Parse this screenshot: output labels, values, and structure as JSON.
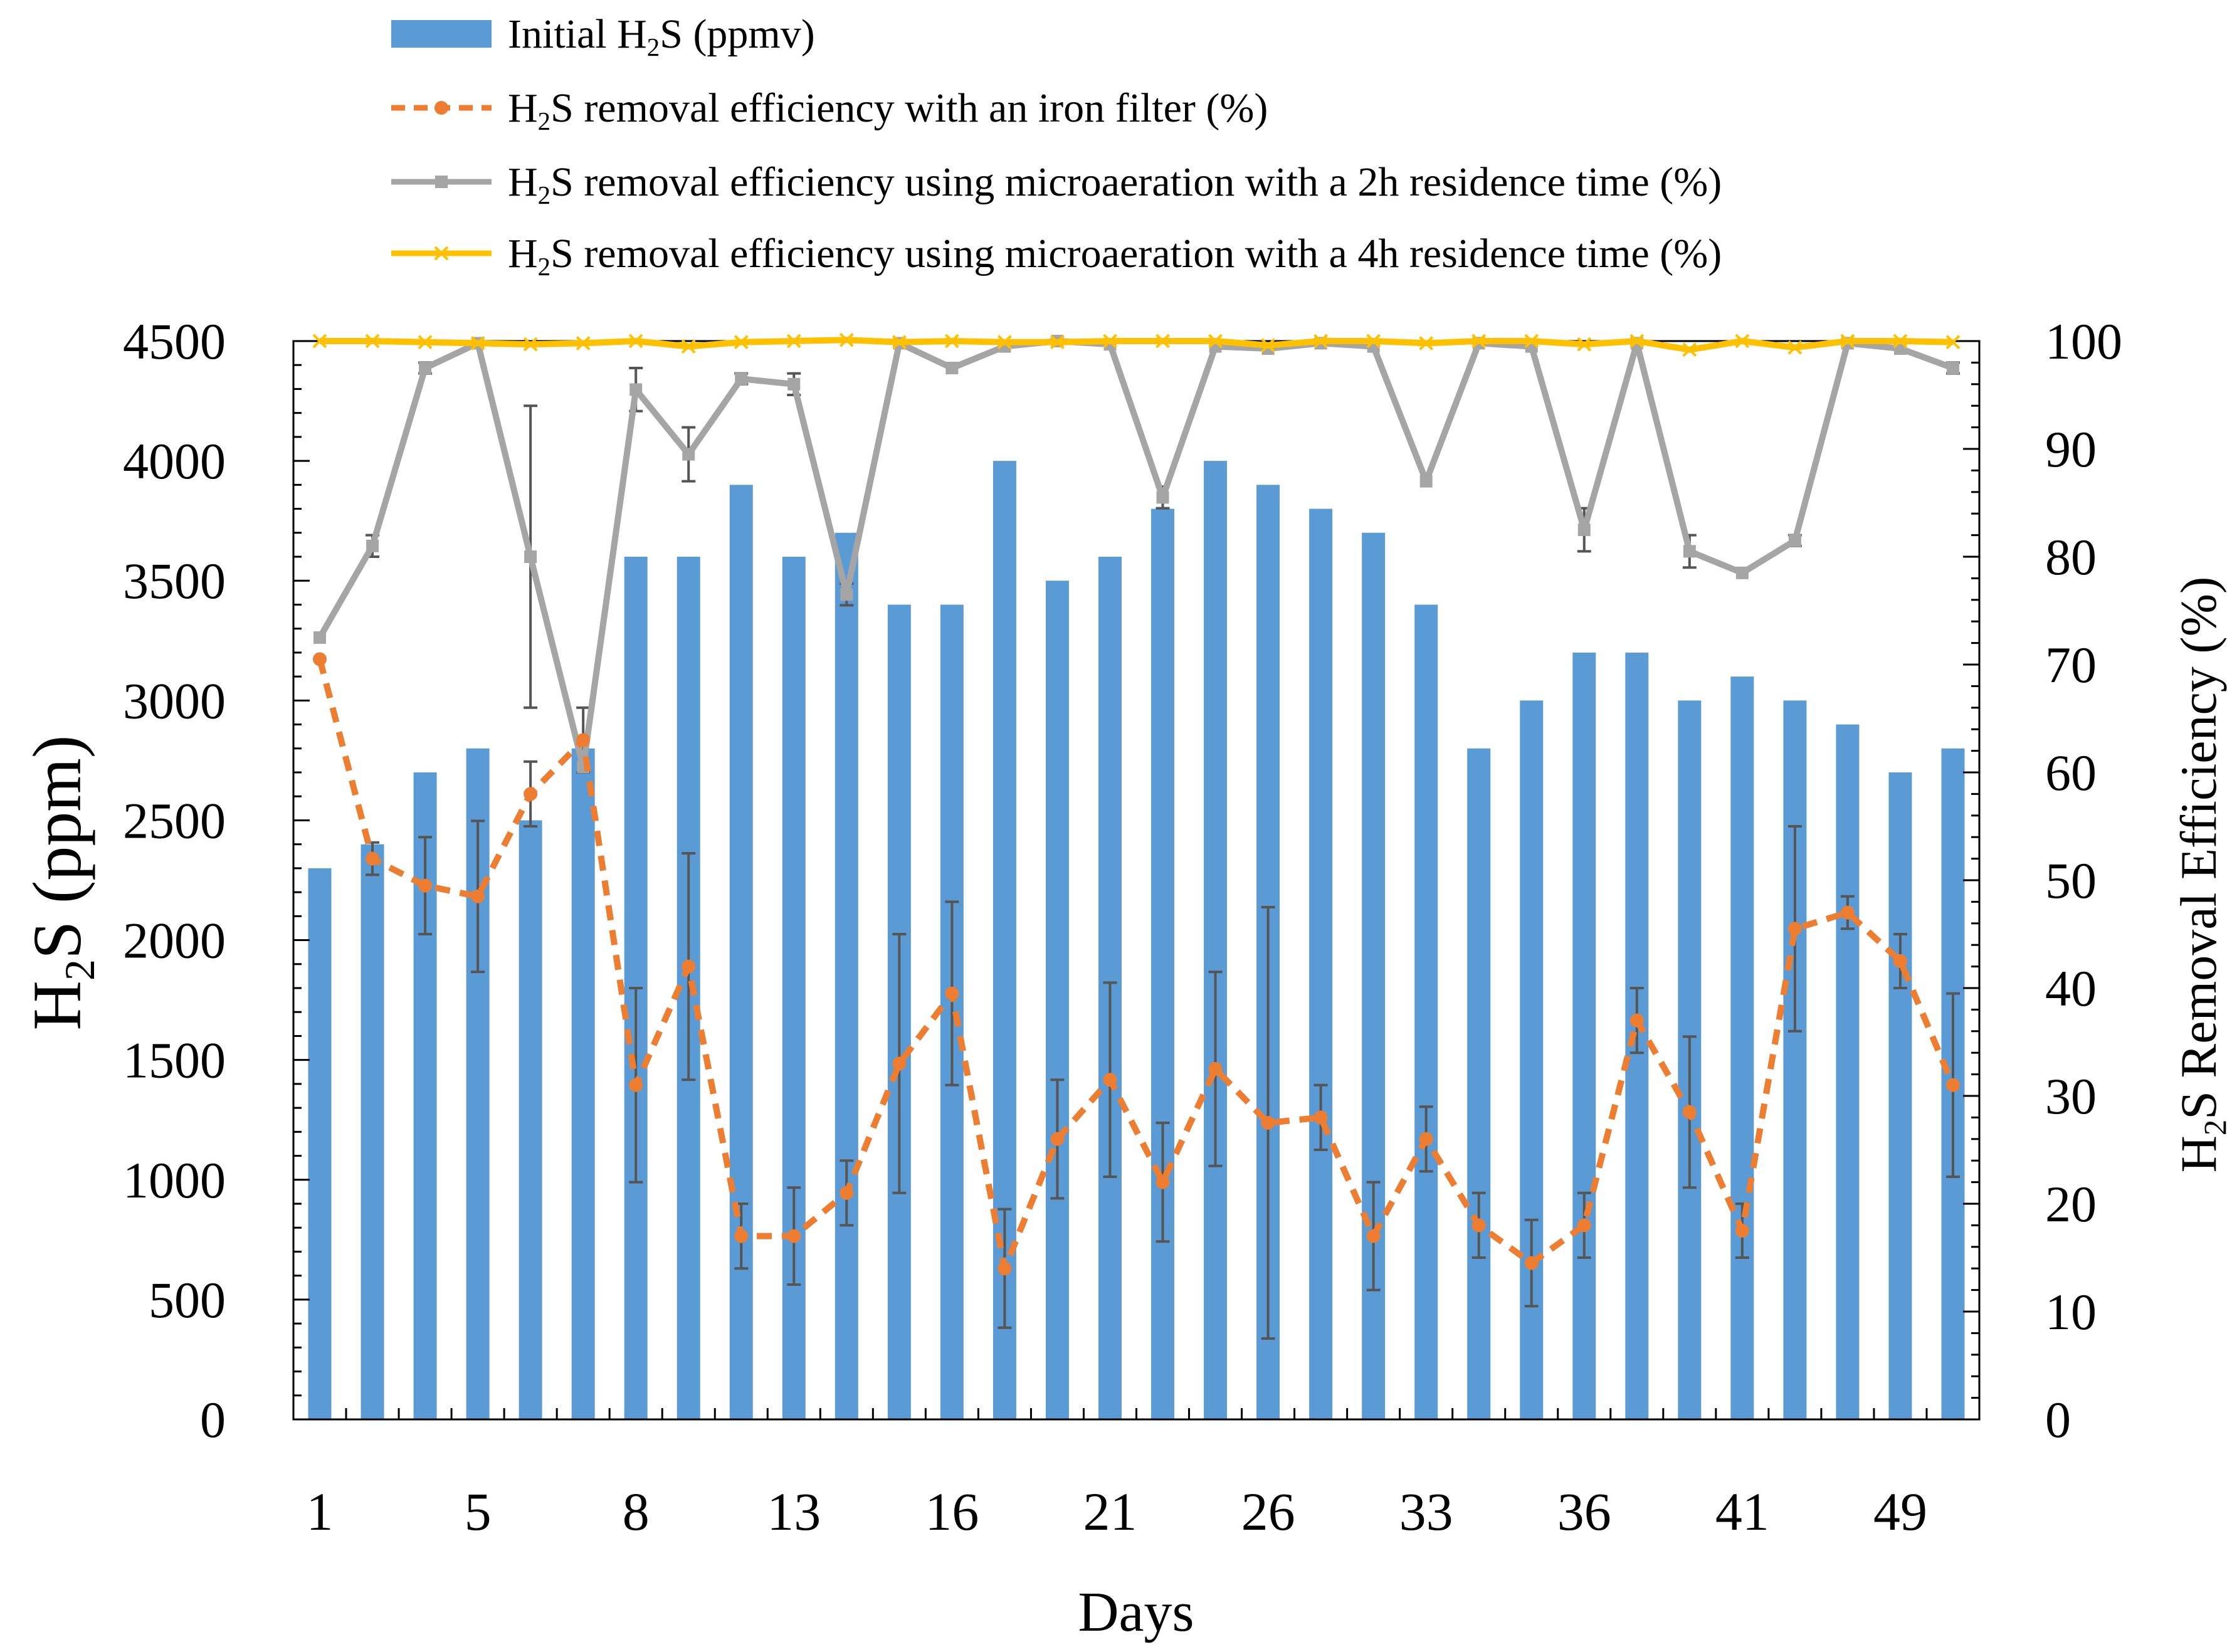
{
  "chart_data": {
    "type": "bar",
    "xlabel": "Days",
    "ylabel_left": {
      "main": "H",
      "sub": "2",
      "rest": "S (ppm)"
    },
    "ylabel_right": {
      "main": "H",
      "sub": "2",
      "rest": "S Removal Efficiency (%)"
    },
    "ylim_left": [
      0,
      4500
    ],
    "ylim_right": [
      0,
      100
    ],
    "yticks_left": [
      "0",
      "500",
      "1000",
      "1500",
      "2000",
      "2500",
      "3000",
      "3500",
      "4000",
      "4500"
    ],
    "yticks_right": [
      "0",
      "10",
      "20",
      "30",
      "40",
      "50",
      "60",
      "70",
      "80",
      "90",
      "100"
    ],
    "x_tick_labels": [
      "1",
      "5",
      "8",
      "13",
      "16",
      "21",
      "26",
      "33",
      "36",
      "41",
      "49"
    ],
    "n_points": 32,
    "legend": [
      {
        "main": "Initial H",
        "sub": "2",
        "rest": "S (ppmv)",
        "color": "#5b9bd5",
        "kind": "bar"
      },
      {
        "main": "H",
        "sub": "2",
        "rest": "S removal efficiency with an iron filter (%)",
        "color": "#ed7d31",
        "kind": "dashed-circle"
      },
      {
        "main": "H",
        "sub": "2",
        "rest": "S removal efficiency using microaeration with a 2h residence time (%)",
        "color": "#a5a5a5",
        "kind": "square"
      },
      {
        "main": "H",
        "sub": "2",
        "rest": "S removal efficiency using microaeration with a 4h residence time (%)",
        "color": "#ffc000",
        "kind": "cross"
      }
    ],
    "series": [
      {
        "name": "Initial H2S (ppmv)",
        "axis": "left",
        "values": [
          2300,
          2400,
          2700,
          2800,
          2500,
          2800,
          3600,
          3600,
          3900,
          3600,
          3700,
          3400,
          3400,
          4000,
          3500,
          3600,
          3800,
          4000,
          3900,
          3800,
          3700,
          3400,
          2800,
          3000,
          3200,
          3200,
          3000,
          3100,
          3000,
          2900,
          2700,
          2800
        ]
      },
      {
        "name": "H2S removal efficiency with an iron filter (%)",
        "axis": "right",
        "values": [
          70.5,
          52,
          49.5,
          48.5,
          58,
          63,
          31,
          42,
          17,
          17,
          21,
          33,
          39.5,
          14,
          26,
          31.5,
          22,
          32.5,
          27.5,
          28,
          17,
          26,
          18,
          14.5,
          18,
          37,
          28.5,
          17.5,
          45.5,
          47,
          42.5,
          31
        ],
        "errors": [
          0,
          1.5,
          4.5,
          7,
          3,
          3,
          9,
          10.5,
          3,
          4.5,
          3,
          12,
          8.5,
          5.5,
          5.5,
          9,
          5.5,
          9,
          20,
          3,
          5,
          3,
          3,
          4,
          3,
          3,
          7,
          2.5,
          9.5,
          1.5,
          2.5,
          8.5
        ]
      },
      {
        "name": "H2S removal efficiency using microaeration with a 2h residence time (%)",
        "axis": "right",
        "values": [
          72.5,
          81,
          97.5,
          99.8,
          80,
          60.5,
          95.5,
          89.5,
          96.5,
          96,
          76.5,
          99.8,
          97.5,
          99.5,
          100,
          99.7,
          85.5,
          99.5,
          99.3,
          99.8,
          99.5,
          87,
          99.8,
          99.5,
          82.5,
          99.8,
          80.5,
          78.5,
          81.5,
          99.8,
          99.3,
          97.5
        ],
        "errors": [
          0,
          1,
          0.5,
          0,
          14,
          0,
          2,
          2.5,
          0.5,
          1,
          1,
          0,
          0,
          0,
          0,
          0,
          1,
          0,
          0,
          0,
          0,
          0,
          0,
          0,
          2,
          0,
          1.5,
          0,
          0.5,
          0,
          0,
          0.5
        ]
      },
      {
        "name": "H2S removal efficiency using microaeration with a 4h residence time (%)",
        "axis": "right",
        "values": [
          100,
          100,
          99.9,
          99.8,
          99.7,
          99.8,
          100,
          99.5,
          99.9,
          100,
          100.1,
          99.9,
          100,
          99.9,
          99.9,
          100,
          100,
          100,
          99.6,
          100,
          100,
          99.8,
          100,
          100,
          99.7,
          100,
          99.2,
          100,
          99.4,
          100,
          100,
          99.9
        ]
      }
    ]
  }
}
